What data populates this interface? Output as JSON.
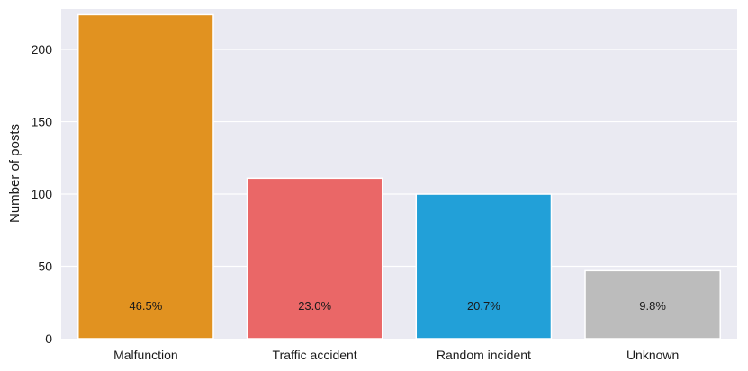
{
  "chart_data": {
    "type": "bar",
    "title": "",
    "xlabel": "",
    "ylabel": "Number of posts",
    "ylim": [
      0,
      228
    ],
    "yticks": [
      0,
      50,
      100,
      150,
      200
    ],
    "grid": true,
    "categories": [
      "Malfunction",
      "Traffic accident",
      "Random incident",
      "Unknown"
    ],
    "values": [
      224,
      111,
      100,
      47
    ],
    "bar_labels": [
      "46.5%",
      "23.0%",
      "20.7%",
      "9.8%"
    ],
    "colors": [
      "#E19220",
      "#EA6767",
      "#22A0D8",
      "#BCBCBC"
    ],
    "background_color": "#EAEAF2"
  }
}
